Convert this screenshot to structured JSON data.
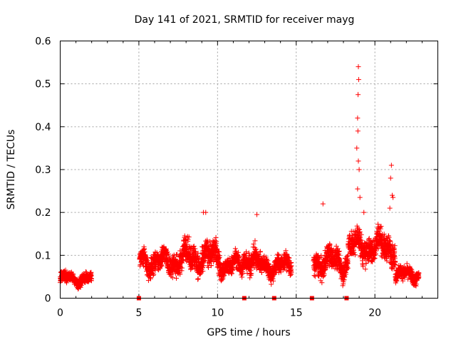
{
  "chart_data": {
    "type": "scatter",
    "title": "Day 141 of 2021, SRMTID for receiver mayg",
    "xlabel": "GPS time / hours",
    "ylabel": "SRMTID / TECUs",
    "xlim": [
      0,
      24
    ],
    "ylim": [
      0,
      0.6
    ],
    "x_ticks": [
      0,
      5,
      10,
      15,
      20
    ],
    "x_tick_labels": [
      "0",
      "5",
      "10",
      "15",
      "20"
    ],
    "y_ticks": [
      0,
      0.1,
      0.2,
      0.3,
      0.4,
      0.5,
      0.6
    ],
    "y_tick_labels": [
      "0",
      "0.1",
      "0.2",
      "0.3",
      "0.4",
      "0.5",
      "0.6"
    ],
    "grid": true,
    "marker": "+",
    "series": [
      {
        "name": "SRMTID",
        "color": "#ff0000",
        "segments": [
          {
            "t_start": 0.0,
            "t_end": 2.0,
            "level": 0.045,
            "spread": 0.02
          },
          {
            "t_start": 5.05,
            "t_end": 7.6,
            "level": 0.085,
            "spread": 0.04
          },
          {
            "t_start": 7.6,
            "t_end": 10.2,
            "level": 0.095,
            "spread": 0.05
          },
          {
            "t_start": 10.2,
            "t_end": 11.6,
            "level": 0.075,
            "spread": 0.035
          },
          {
            "t_start": 11.6,
            "t_end": 12.4,
            "level": 0.095,
            "spread": 0.045
          },
          {
            "t_start": 12.4,
            "t_end": 14.7,
            "level": 0.075,
            "spread": 0.035
          },
          {
            "t_start": 16.1,
            "t_end": 18.3,
            "level": 0.085,
            "spread": 0.045
          },
          {
            "t_start": 18.3,
            "t_end": 21.3,
            "level": 0.12,
            "spread": 0.05
          },
          {
            "t_start": 21.3,
            "t_end": 22.8,
            "level": 0.055,
            "spread": 0.025
          }
        ],
        "peaks": [
          {
            "x": 18.95,
            "y": 0.54
          },
          {
            "x": 18.97,
            "y": 0.51
          },
          {
            "x": 18.93,
            "y": 0.475
          },
          {
            "x": 18.9,
            "y": 0.42
          },
          {
            "x": 18.92,
            "y": 0.39
          },
          {
            "x": 18.85,
            "y": 0.35
          },
          {
            "x": 18.95,
            "y": 0.32
          },
          {
            "x": 19.0,
            "y": 0.3
          },
          {
            "x": 18.9,
            "y": 0.255
          },
          {
            "x": 19.05,
            "y": 0.235
          },
          {
            "x": 21.05,
            "y": 0.31
          },
          {
            "x": 21.0,
            "y": 0.28
          },
          {
            "x": 21.1,
            "y": 0.24
          },
          {
            "x": 21.15,
            "y": 0.235
          },
          {
            "x": 20.95,
            "y": 0.21
          },
          {
            "x": 9.1,
            "y": 0.2
          },
          {
            "x": 9.25,
            "y": 0.2
          },
          {
            "x": 16.7,
            "y": 0.22
          },
          {
            "x": 12.5,
            "y": 0.195
          },
          {
            "x": 19.3,
            "y": 0.2
          }
        ],
        "zero_markers": [
          5.0,
          11.7,
          13.6,
          16.0,
          18.2
        ]
      }
    ]
  }
}
